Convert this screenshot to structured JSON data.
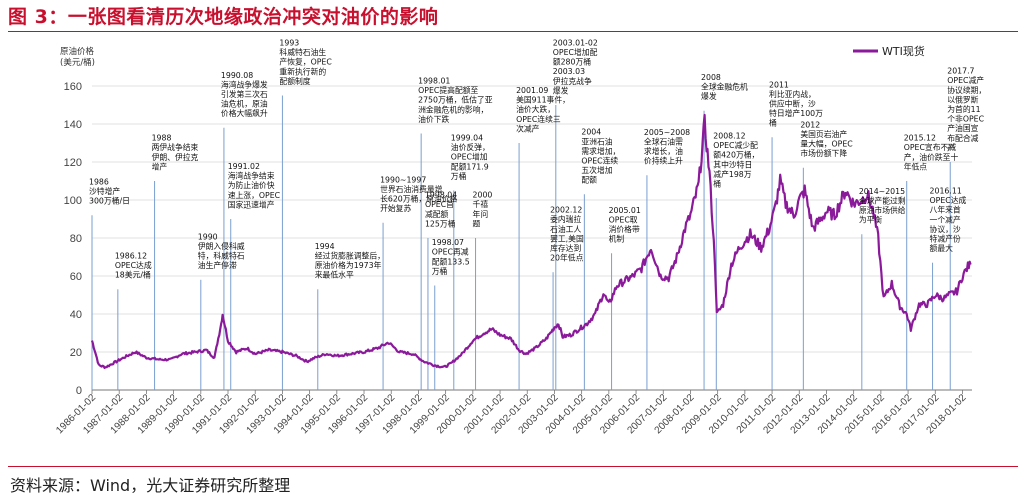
{
  "figure_title": "图 3：一张图看清历次地缘政治冲突对油价的影响",
  "source": "资料来源：Wind，光大证券研究所整理",
  "colors": {
    "title": "#c8102e",
    "line": "#8b1a9b",
    "text": "#222222",
    "grid": "#d9d9d9",
    "axis": "#777777"
  },
  "chart_data": {
    "type": "line",
    "ylabel": "原油价格\n(美元/桶)",
    "ylim": [
      0,
      160
    ],
    "yticks": [
      0,
      20,
      40,
      60,
      80,
      100,
      120,
      140,
      160
    ],
    "grid": true,
    "legend_position": "top-right",
    "series": [
      {
        "name": "WTI现货",
        "color": "#8b1a9b",
        "x": [
          1986.0,
          1986.1,
          1986.25,
          1986.5,
          1986.9,
          1987.3,
          1987.6,
          1988.0,
          1988.5,
          1988.9,
          1989.3,
          1989.8,
          1990.2,
          1990.5,
          1990.75,
          1990.8,
          1991.0,
          1991.3,
          1991.7,
          1992.0,
          1992.5,
          1993.0,
          1993.5,
          1993.9,
          1994.2,
          1994.6,
          1995.0,
          1995.5,
          1996.0,
          1996.5,
          1996.9,
          1997.3,
          1997.8,
          1998.2,
          1998.6,
          1998.95,
          1999.2,
          1999.6,
          2000.0,
          2000.4,
          2000.7,
          2001.0,
          2001.4,
          2001.7,
          2001.95,
          2002.3,
          2002.7,
          2003.0,
          2003.15,
          2003.3,
          2003.6,
          2003.9,
          2004.2,
          2004.5,
          2004.8,
          2005.0,
          2005.3,
          2005.65,
          2005.9,
          2006.2,
          2006.55,
          2006.9,
          2007.2,
          2007.5,
          2007.8,
          2008.0,
          2008.3,
          2008.52,
          2008.7,
          2008.9,
          2008.97,
          2009.2,
          2009.5,
          2009.8,
          2010.2,
          2010.6,
          2010.9,
          2011.1,
          2011.3,
          2011.5,
          2011.8,
          2012.0,
          2012.2,
          2012.5,
          2012.8,
          2013.0,
          2013.3,
          2013.7,
          2014.0,
          2014.3,
          2014.5,
          2014.7,
          2014.9,
          2015.1,
          2015.4,
          2015.7,
          2015.95,
          2016.1,
          2016.4,
          2016.7,
          2017.0,
          2017.3,
          2017.5,
          2017.8,
          2018.0,
          2018.2,
          2018.3
        ],
        "y": [
          26,
          21,
          13,
          12,
          15,
          18,
          20,
          17,
          16,
          16,
          19,
          20,
          21,
          17,
          35,
          40,
          26,
          20,
          22,
          19,
          21,
          20,
          18,
          15,
          17,
          19,
          18,
          19,
          20,
          22,
          25,
          20,
          19,
          15,
          13,
          12,
          14,
          19,
          26,
          30,
          32,
          29,
          27,
          21,
          19,
          22,
          27,
          33,
          35,
          28,
          29,
          32,
          35,
          40,
          51,
          45,
          55,
          58,
          60,
          64,
          75,
          60,
          59,
          70,
          85,
          92,
          108,
          140,
          114,
          68,
          40,
          45,
          66,
          75,
          82,
          75,
          85,
          95,
          110,
          98,
          92,
          100,
          105,
          85,
          90,
          94,
          92,
          105,
          98,
          100,
          103,
          95,
          80,
          48,
          56,
          44,
          40,
          32,
          45,
          45,
          50,
          48,
          50,
          52,
          60,
          65,
          66
        ]
      }
    ],
    "xlabels": [
      "1986-01-02",
      "1987-01-02",
      "1988-01-02",
      "1989-01-02",
      "1990-01-02",
      "1991-01-02",
      "1992-01-02",
      "1993-01-02",
      "1994-01-02",
      "1995-01-02",
      "1996-01-02",
      "1997-01-02",
      "1998-01-02",
      "1999-01-02",
      "2000-01-02",
      "2001-01-02",
      "2002-01-02",
      "2003-01-02",
      "2004-01-02",
      "2005-01-02",
      "2006-01-02",
      "2007-01-02",
      "2008-01-02",
      "2009-01-02",
      "2010-01-02",
      "2011-01-02",
      "2012-01-02",
      "2013-01-02",
      "2014-01-02",
      "2015-01-02",
      "2016-01-02",
      "2017-01-02",
      "2018-01-02"
    ],
    "annotations": [
      {
        "x": 1986.0,
        "top": 92,
        "text": "1986\n沙特增产\n300万桶/日"
      },
      {
        "x": 1986.95,
        "top": 53,
        "text": "1986.12\nOPEC达成\n18美元/桶"
      },
      {
        "x": 1988.3,
        "top": 110,
        "text": "1988\n两伊战争结束\n伊朗、伊拉克\n增产"
      },
      {
        "x": 1990.0,
        "top": 58,
        "text": "1990\n伊朗入侵科威\n特，科威特石\n油生产停滞"
      },
      {
        "x": 1990.85,
        "top": 138,
        "text": "1990.08\n海湾战争爆发\n引发第三次石\n油危机，原油\n价格大幅飙升"
      },
      {
        "x": 1991.1,
        "top": 90,
        "text": "1991.02\n海湾战争结束\n为防止油价快\n速上涨，OPEC\n国家迅速增产"
      },
      {
        "x": 1993.0,
        "top": 155,
        "text": "1993\n科威特石油生\n产恢复，OPEC\n重新执行新的\n配额制度"
      },
      {
        "x": 1994.3,
        "top": 53,
        "text": "1994\n经过货膨胀调整后，\n原油价格为1973年\n来最低水平"
      },
      {
        "x": 1996.7,
        "top": 88,
        "text": "1990~1997\n世界石油消费量增\n长620万桶，原油价格\n开始复苏"
      },
      {
        "x": 1998.1,
        "top": 135,
        "text": "1998.01\nOPEC提高配额至\n2750万桶，低估了亚\n洲金融危机的影响，\n油价下跌"
      },
      {
        "x": 1998.35,
        "top": 80,
        "text": "1998.04\nOPEC首\n减配额\n125万桶"
      },
      {
        "x": 1998.6,
        "top": 55,
        "text": "1998.07\nOPEC再减\n配额133.5\n万桶"
      },
      {
        "x": 1999.3,
        "top": 105,
        "text": "1999.04\n油价反弹，\nOPEC增加\n配额171.9\n万桶"
      },
      {
        "x": 2000.1,
        "top": 80,
        "text": "2000\n千禧\n年问\n题"
      },
      {
        "x": 2001.7,
        "top": 130,
        "text": "2001.09\n美国911事件，\n油价大跌，\nOPEC连续三\n次减产"
      },
      {
        "x": 2002.95,
        "top": 62,
        "text": "2002.12\n委内瑞拉\n石油工人\n罢工,美国\n库存达到\n20年低点"
      },
      {
        "x": 2003.05,
        "top": 150,
        "text": "2003.01-02\nOPEC增加配\n额280万桶\n2003.03\n伊拉克战争\n爆发"
      },
      {
        "x": 2004.1,
        "top": 103,
        "text": "2004\n亚洲石油\n需求增加，\nOPEC连续\n五次增加\n配额"
      },
      {
        "x": 2005.1,
        "top": 72,
        "text": "2005.01\nOPEC取\n消价格带\n机制"
      },
      {
        "x": 2006.4,
        "top": 113,
        "text": "2005~2008\n全球石油需\n求增长，油\n价持续上升"
      },
      {
        "x": 2008.5,
        "top": 147,
        "text": "2008\n全球金融危机\n爆发"
      },
      {
        "x": 2008.95,
        "top": 101,
        "text": "2008.12\nOPEC减少配\n额420万桶，\n其中沙特日\n减产198万\n桶"
      },
      {
        "x": 2011.0,
        "top": 133,
        "text": "2011\n利比亚内战，\n供应中断，沙\n特日增产100万\n桶"
      },
      {
        "x": 2012.15,
        "top": 117,
        "text": "2012\n美国页岩油产\n量大幅，OPEC\n市场份额下降"
      },
      {
        "x": 2014.3,
        "top": 82,
        "text": "2014~2015\n全球产能过剩\n原油市场供给\n为平衡"
      },
      {
        "x": 2015.95,
        "top": 110,
        "text": "2015.12\nOPEC宣布不减\n产，油价跌至十\n年低点"
      },
      {
        "x": 2016.9,
        "top": 67,
        "text": "2016.11\nOPEC达成\n八年来首\n一个减产\n协议，沙\n特减产份\n额最大"
      },
      {
        "x": 2017.55,
        "top": 120,
        "text": "2017.7\nOPEC减产\n协议续期，\n以俄罗斯\n为首的11\n个非OPEC\n产油国宣\n布配合减\n产"
      }
    ]
  }
}
